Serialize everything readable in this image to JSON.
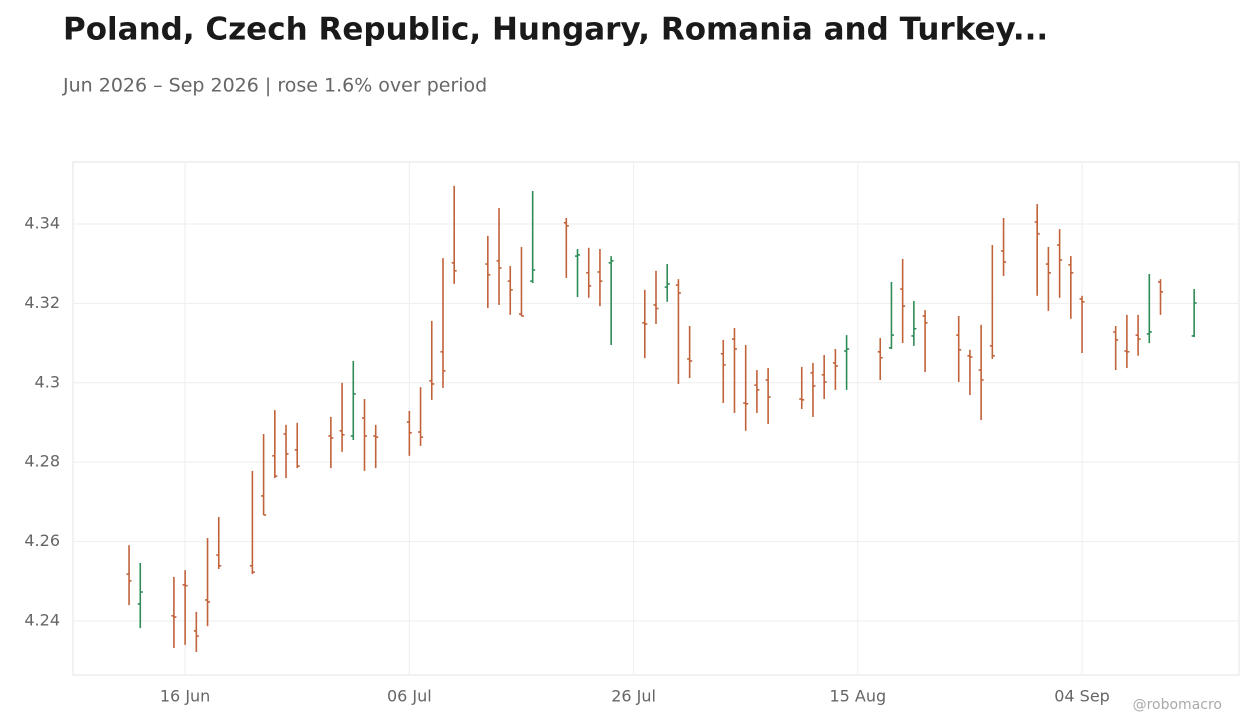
{
  "chart_data": {
    "type": "ohlc",
    "title": "Poland, Czech Republic, Hungary, Romania and Turkey...",
    "subtitle": "Jun 2026 – Sep 2026 | rose 1.6% over period",
    "credit": "@robomacro",
    "up_color": "#2e8b57",
    "down_color": "#c0623a",
    "grid": true,
    "x": [
      "2026-06-11",
      "2026-06-12",
      "2026-06-15",
      "2026-06-16",
      "2026-06-17",
      "2026-06-18",
      "2026-06-19",
      "2026-06-22",
      "2026-06-23",
      "2026-06-24",
      "2026-06-25",
      "2026-06-26",
      "2026-06-29",
      "2026-06-30",
      "2026-07-01",
      "2026-07-02",
      "2026-07-03",
      "2026-07-06",
      "2026-07-07",
      "2026-07-08",
      "2026-07-09",
      "2026-07-10",
      "2026-07-13",
      "2026-07-14",
      "2026-07-15",
      "2026-07-16",
      "2026-07-17",
      "2026-07-20",
      "2026-07-21",
      "2026-07-22",
      "2026-07-23",
      "2026-07-24",
      "2026-07-27",
      "2026-07-28",
      "2026-07-29",
      "2026-07-30",
      "2026-07-31",
      "2026-08-03",
      "2026-08-04",
      "2026-08-05",
      "2026-08-06",
      "2026-08-07",
      "2026-08-10",
      "2026-08-11",
      "2026-08-12",
      "2026-08-13",
      "2026-08-14",
      "2026-08-17",
      "2026-08-18",
      "2026-08-19",
      "2026-08-20",
      "2026-08-21",
      "2026-08-24",
      "2026-08-25",
      "2026-08-26",
      "2026-08-27",
      "2026-08-28",
      "2026-08-31",
      "2026-09-01",
      "2026-09-02",
      "2026-09-03",
      "2026-09-04",
      "2026-09-07",
      "2026-09-08",
      "2026-09-09",
      "2026-09-10",
      "2026-09-11",
      "2026-09-14"
    ],
    "open": [
      4.2518,
      4.2443,
      4.2413,
      4.2491,
      4.2375,
      4.2453,
      4.2566,
      4.2539,
      4.2715,
      4.2816,
      4.2871,
      4.2831,
      4.2866,
      4.2879,
      4.2866,
      4.2911,
      4.2866,
      4.2901,
      4.2876,
      4.3005,
      4.3078,
      4.3302,
      4.3299,
      4.3307,
      4.3256,
      4.3173,
      4.3256,
      4.3403,
      4.3319,
      4.3277,
      4.3279,
      4.3302,
      4.3151,
      4.3196,
      4.3241,
      4.3246,
      4.306,
      4.3073,
      4.311,
      4.2949,
      4.2994,
      4.3007,
      4.2959,
      4.3025,
      4.302,
      4.305,
      4.308,
      4.3078,
      4.3088,
      4.3236,
      4.3118,
      4.3168,
      4.312,
      4.3068,
      4.3032,
      4.3093,
      4.3332,
      4.3405,
      4.3299,
      4.3347,
      4.3297,
      4.3211,
      4.3128,
      4.308,
      4.312,
      4.3123,
      4.3254,
      4.3118
    ],
    "high": [
      4.2591,
      4.2546,
      4.2511,
      4.2528,
      4.2423,
      4.2609,
      4.2662,
      4.2778,
      4.2871,
      4.2931,
      4.2894,
      4.2899,
      4.2914,
      4.3,
      4.3055,
      4.2959,
      4.2894,
      4.2929,
      4.2989,
      4.3156,
      4.3314,
      4.3496,
      4.337,
      4.344,
      4.3294,
      4.3342,
      4.3483,
      4.3415,
      4.3337,
      4.334,
      4.3337,
      4.3319,
      4.3234,
      4.3282,
      4.3299,
      4.3261,
      4.3143,
      4.3108,
      4.3138,
      4.3095,
      4.3032,
      4.3037,
      4.304,
      4.305,
      4.307,
      4.3085,
      4.312,
      4.3113,
      4.3254,
      4.3312,
      4.3206,
      4.3183,
      4.3168,
      4.3083,
      4.3146,
      4.3347,
      4.3415,
      4.345,
      4.3342,
      4.3387,
      4.3319,
      4.3219,
      4.3143,
      4.3171,
      4.3171,
      4.3274,
      4.3261,
      4.3236
    ],
    "low": [
      4.244,
      4.2382,
      4.2332,
      4.234,
      4.2322,
      4.2387,
      4.2531,
      4.2518,
      4.2667,
      4.276,
      4.276,
      4.2785,
      4.2785,
      4.2826,
      4.2856,
      4.2778,
      4.2785,
      4.2816,
      4.2841,
      4.2957,
      4.2987,
      4.3249,
      4.3188,
      4.3196,
      4.3171,
      4.3168,
      4.3251,
      4.3264,
      4.3216,
      4.3214,
      4.3193,
      4.3095,
      4.3062,
      4.3148,
      4.3204,
      4.2997,
      4.3012,
      4.2949,
      4.2924,
      4.2879,
      4.2924,
      4.2896,
      4.2934,
      4.2914,
      4.2959,
      4.2982,
      4.2982,
      4.3007,
      4.3085,
      4.31,
      4.3093,
      4.3027,
      4.3002,
      4.2969,
      4.2906,
      4.306,
      4.3269,
      4.3219,
      4.3181,
      4.3214,
      4.3161,
      4.3075,
      4.3032,
      4.3037,
      4.3068,
      4.31,
      4.3171,
      4.3115
    ],
    "close": [
      4.2501,
      4.2473,
      4.241,
      4.2489,
      4.2362,
      4.2448,
      4.2539,
      4.2523,
      4.2667,
      4.2765,
      4.2821,
      4.279,
      4.2861,
      4.2869,
      4.2972,
      4.2866,
      4.2863,
      4.2874,
      4.2863,
      4.2997,
      4.303,
      4.3282,
      4.3272,
      4.3289,
      4.3234,
      4.3168,
      4.3284,
      4.3395,
      4.3322,
      4.3244,
      4.3256,
      4.3307,
      4.3148,
      4.3187,
      4.3249,
      4.3226,
      4.3055,
      4.3045,
      4.3085,
      4.2947,
      4.2982,
      4.2964,
      4.2957,
      4.2992,
      4.3002,
      4.3042,
      4.3085,
      4.3063,
      4.312,
      4.3193,
      4.3136,
      4.3151,
      4.3083,
      4.3065,
      4.3007,
      4.3068,
      4.3304,
      4.3375,
      4.3277,
      4.3309,
      4.3277,
      4.3204,
      4.3108,
      4.3078,
      4.311,
      4.3128,
      4.3229,
      4.3201
    ],
    "xlim": [
      "2026-06-06",
      "2026-09-18"
    ],
    "xticks": [
      {
        "value": "2026-06-16",
        "label": "16 Jun"
      },
      {
        "value": "2026-07-06",
        "label": "06 Jul"
      },
      {
        "value": "2026-07-26",
        "label": "26 Jul"
      },
      {
        "value": "2026-08-15",
        "label": "15 Aug"
      },
      {
        "value": "2026-09-04",
        "label": "04 Sep"
      }
    ],
    "ylim": [
      4.2264,
      4.3556
    ],
    "yticks": [
      4.24,
      4.26,
      4.28,
      4.3,
      {
        "value": 4.32,
        "label": "4.32"
      },
      4.34
    ]
  }
}
